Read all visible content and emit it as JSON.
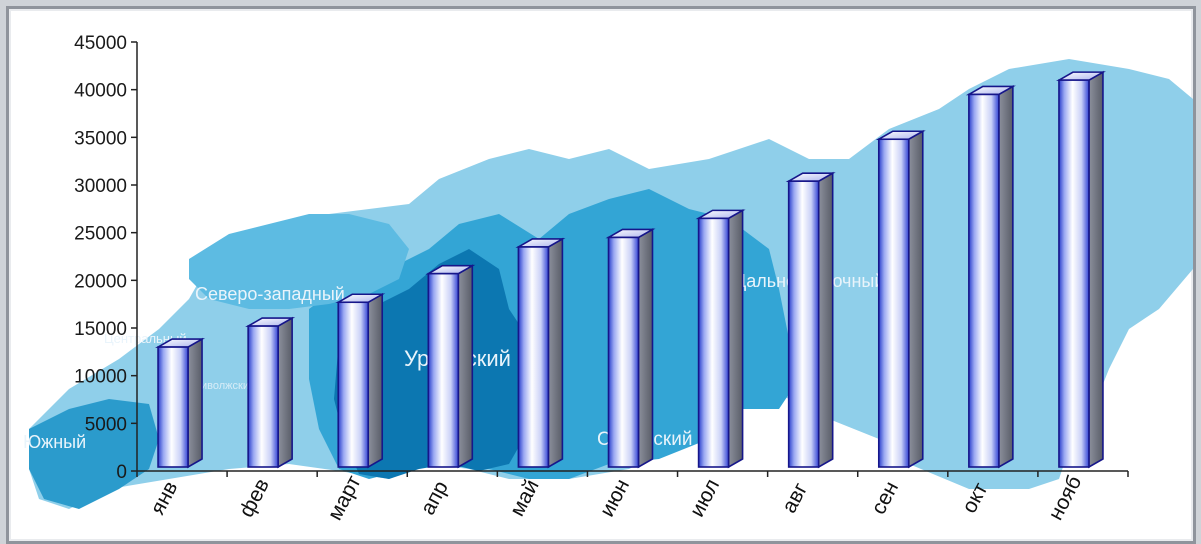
{
  "chart_data": {
    "type": "bar",
    "categories": [
      "янв",
      "фев",
      "март",
      "апр",
      "май",
      "июн",
      "июл",
      "авг",
      "сен",
      "окт",
      "нояб"
    ],
    "values": [
      13000,
      15200,
      17700,
      20700,
      23500,
      24500,
      26500,
      30400,
      34800,
      39500,
      41000
    ],
    "ylim": [
      0,
      45000
    ],
    "yticks": [
      0,
      5000,
      10000,
      15000,
      20000,
      25000,
      30000,
      35000,
      40000,
      45000
    ],
    "title": "",
    "xlabel": "",
    "ylabel": "",
    "grid": false,
    "style": "3d-cylinder-bars",
    "colors": {
      "bar_front_light": "#ffffff",
      "bar_front_dark": "#2c46d8",
      "bar_side": "#6f7482",
      "bar_outline": "#16168a",
      "map_light": "#8ecde9",
      "map_mid": "#34a6d6",
      "map_dark": "#0d79b3"
    }
  },
  "background_map": {
    "regions": [
      "Северо-западный",
      "Центральный",
      "Приволжский",
      "Уральский",
      "Южный",
      "Сибирский",
      "Дальневосточный"
    ]
  }
}
